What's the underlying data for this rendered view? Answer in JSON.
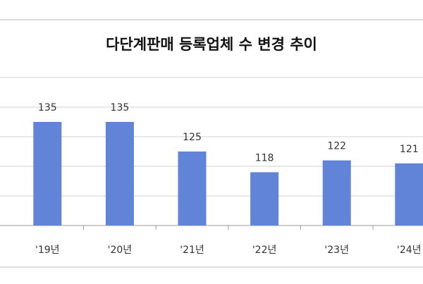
{
  "chart_data": {
    "type": "bar",
    "title": "다단계판매 등록업체 수 변경 추이",
    "categories": [
      "'19년",
      "'20년",
      "'21년",
      "'22년",
      "'23년",
      "'24년"
    ],
    "values": [
      135,
      135,
      125,
      118,
      122,
      121
    ],
    "color": "#6183d8",
    "ylim": [
      100,
      150
    ],
    "yticks": [
      100,
      110,
      120,
      130,
      140,
      150
    ],
    "grid": true
  }
}
